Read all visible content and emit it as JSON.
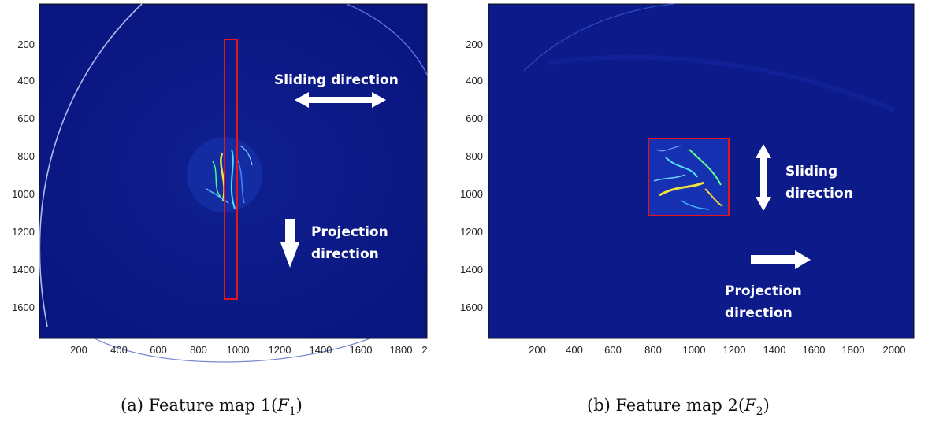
{
  "panels": [
    {
      "caption_prefix": "(a) Feature map 1(",
      "caption_var": "F",
      "caption_sub": "1",
      "caption_suffix": ")",
      "xticks": [
        "200",
        "400",
        "600",
        "800",
        "1000",
        "1200",
        "1400",
        "1600",
        "1800",
        "2"
      ],
      "yticks": [
        "200",
        "400",
        "600",
        "800",
        "1000",
        "1200",
        "1400",
        "1600"
      ],
      "annotations": [
        "Sliding direction",
        "Projection",
        "direction"
      ]
    },
    {
      "caption_prefix": "(b) Feature map 2(",
      "caption_var": "F",
      "caption_sub": "2",
      "caption_suffix": ")",
      "xticks": [
        "200",
        "400",
        "600",
        "800",
        "1000",
        "1200",
        "1400",
        "1600",
        "1800",
        "2000"
      ],
      "yticks": [
        "200",
        "400",
        "600",
        "800",
        "1000",
        "1200",
        "1400",
        "1600"
      ],
      "annotations": [
        "Sliding",
        "direction",
        "Projection",
        "direction"
      ]
    }
  ],
  "colors": {
    "map_bg": "#0c1a8a",
    "roi_box": "#e8141a",
    "arrow": "#ffffff"
  }
}
